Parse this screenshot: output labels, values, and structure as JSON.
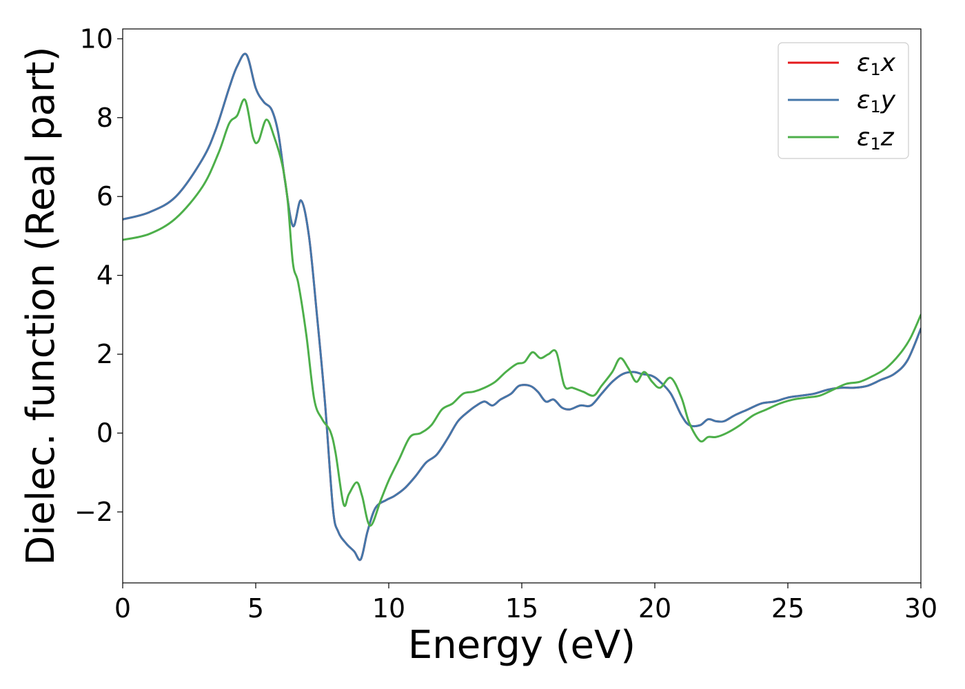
{
  "chart_data": {
    "type": "line",
    "title": "",
    "xlabel": "Energy (eV)",
    "ylabel": "Dielec. function (Real part)",
    "xlim": [
      0,
      30
    ],
    "ylim": [
      -3.8,
      10.25
    ],
    "xticks": [
      0,
      5,
      10,
      15,
      20,
      25,
      30
    ],
    "xtick_labels": [
      "0",
      "5",
      "10",
      "15",
      "20",
      "25",
      "30"
    ],
    "yticks": [
      -2,
      0,
      2,
      4,
      6,
      8,
      10
    ],
    "ytick_labels": [
      "−2",
      "0",
      "2",
      "4",
      "6",
      "8",
      "10"
    ],
    "grid": false,
    "legend_position": "top-right",
    "series": [
      {
        "name": "ε1x",
        "symbol": "ε",
        "subscript": "1",
        "component": "x",
        "color": "#e41a1c",
        "x": [
          0,
          1,
          2,
          3,
          3.5,
          4,
          4.3,
          4.65,
          5,
          5.3,
          5.6,
          5.85,
          6.1,
          6.4,
          6.7,
          7,
          7.3,
          7.6,
          7.9,
          8.1,
          8.4,
          8.7,
          8.95,
          9.2,
          9.5,
          9.9,
          10.2,
          10.6,
          11,
          11.4,
          11.8,
          12.2,
          12.6,
          13,
          13.3,
          13.6,
          13.9,
          14.2,
          14.6,
          14.9,
          15.3,
          15.6,
          15.9,
          16.2,
          16.5,
          16.8,
          17.2,
          17.6,
          18,
          18.4,
          18.8,
          19.2,
          19.5,
          19.9,
          20.2,
          20.6,
          21,
          21.3,
          21.7,
          22,
          22.3,
          22.6,
          23,
          23.5,
          24,
          24.5,
          25,
          25.5,
          26,
          26.5,
          27,
          27.5,
          28,
          28.5,
          29,
          29.5,
          30
        ],
        "y": [
          5.42,
          5.6,
          6.0,
          6.95,
          7.7,
          8.75,
          9.3,
          9.6,
          8.75,
          8.4,
          8.2,
          7.6,
          6.4,
          5.25,
          5.9,
          5.0,
          3.0,
          0.8,
          -1.9,
          -2.5,
          -2.8,
          -3.0,
          -3.2,
          -2.5,
          -1.9,
          -1.7,
          -1.6,
          -1.4,
          -1.1,
          -0.75,
          -0.55,
          -0.15,
          0.3,
          0.55,
          0.7,
          0.8,
          0.7,
          0.85,
          1.0,
          1.2,
          1.2,
          1.05,
          0.8,
          0.85,
          0.65,
          0.6,
          0.7,
          0.7,
          1.0,
          1.3,
          1.5,
          1.55,
          1.5,
          1.45,
          1.3,
          1.0,
          0.45,
          0.2,
          0.2,
          0.35,
          0.3,
          0.3,
          0.45,
          0.6,
          0.75,
          0.8,
          0.9,
          0.95,
          1.0,
          1.1,
          1.15,
          1.15,
          1.2,
          1.35,
          1.5,
          1.85,
          2.65
        ]
      },
      {
        "name": "ε1y",
        "symbol": "ε",
        "subscript": "1",
        "component": "y",
        "color": "#4477aa",
        "x": [
          0,
          1,
          2,
          3,
          3.5,
          4,
          4.3,
          4.65,
          5,
          5.3,
          5.6,
          5.85,
          6.1,
          6.4,
          6.7,
          7,
          7.3,
          7.6,
          7.9,
          8.1,
          8.4,
          8.7,
          8.95,
          9.2,
          9.5,
          9.9,
          10.2,
          10.6,
          11,
          11.4,
          11.8,
          12.2,
          12.6,
          13,
          13.3,
          13.6,
          13.9,
          14.2,
          14.6,
          14.9,
          15.3,
          15.6,
          15.9,
          16.2,
          16.5,
          16.8,
          17.2,
          17.6,
          18,
          18.4,
          18.8,
          19.2,
          19.5,
          19.9,
          20.2,
          20.6,
          21,
          21.3,
          21.7,
          22,
          22.3,
          22.6,
          23,
          23.5,
          24,
          24.5,
          25,
          25.5,
          26,
          26.5,
          27,
          27.5,
          28,
          28.5,
          29,
          29.5,
          30
        ],
        "y": [
          5.42,
          5.6,
          6.0,
          6.95,
          7.7,
          8.75,
          9.3,
          9.6,
          8.75,
          8.4,
          8.2,
          7.6,
          6.4,
          5.25,
          5.9,
          5.0,
          3.0,
          0.8,
          -1.9,
          -2.5,
          -2.8,
          -3.0,
          -3.2,
          -2.5,
          -1.9,
          -1.7,
          -1.6,
          -1.4,
          -1.1,
          -0.75,
          -0.55,
          -0.15,
          0.3,
          0.55,
          0.7,
          0.8,
          0.7,
          0.85,
          1.0,
          1.2,
          1.2,
          1.05,
          0.8,
          0.85,
          0.65,
          0.6,
          0.7,
          0.7,
          1.0,
          1.3,
          1.5,
          1.55,
          1.5,
          1.45,
          1.3,
          1.0,
          0.45,
          0.2,
          0.2,
          0.35,
          0.3,
          0.3,
          0.45,
          0.6,
          0.75,
          0.8,
          0.9,
          0.95,
          1.0,
          1.1,
          1.15,
          1.15,
          1.2,
          1.35,
          1.5,
          1.85,
          2.65
        ]
      },
      {
        "name": "ε1z",
        "symbol": "ε",
        "subscript": "1",
        "component": "z",
        "color": "#4daf4a",
        "x": [
          0,
          1,
          2,
          3,
          3.6,
          4,
          4.3,
          4.6,
          4.9,
          5.1,
          5.4,
          5.7,
          6,
          6.2,
          6.4,
          6.6,
          6.9,
          7.2,
          7.5,
          7.8,
          8.0,
          8.3,
          8.5,
          8.8,
          9.0,
          9.3,
          9.7,
          10.0,
          10.4,
          10.8,
          11.2,
          11.6,
          12,
          12.4,
          12.8,
          13.2,
          13.6,
          14,
          14.4,
          14.8,
          15.1,
          15.4,
          15.7,
          16,
          16.3,
          16.6,
          16.9,
          17.3,
          17.7,
          18,
          18.4,
          18.7,
          19,
          19.3,
          19.6,
          19.9,
          20.2,
          20.6,
          21,
          21.3,
          21.7,
          22,
          22.3,
          22.7,
          23.2,
          23.7,
          24.2,
          24.7,
          25.2,
          25.7,
          26.2,
          26.7,
          27.2,
          27.7,
          28.2,
          28.7,
          29.2,
          29.6,
          30
        ],
        "y": [
          4.9,
          5.05,
          5.45,
          6.25,
          7.1,
          7.85,
          8.05,
          8.45,
          7.5,
          7.4,
          7.95,
          7.5,
          6.8,
          5.9,
          4.3,
          3.8,
          2.5,
          0.85,
          0.35,
          0.05,
          -0.5,
          -1.8,
          -1.55,
          -1.25,
          -1.6,
          -2.35,
          -1.7,
          -1.2,
          -0.65,
          -0.1,
          0.0,
          0.2,
          0.6,
          0.75,
          1.0,
          1.05,
          1.15,
          1.3,
          1.55,
          1.75,
          1.8,
          2.05,
          1.9,
          2.0,
          2.05,
          1.2,
          1.15,
          1.05,
          0.95,
          1.2,
          1.55,
          1.9,
          1.65,
          1.3,
          1.55,
          1.3,
          1.15,
          1.4,
          0.9,
          0.25,
          -0.2,
          -0.1,
          -0.1,
          0.0,
          0.2,
          0.45,
          0.6,
          0.75,
          0.85,
          0.9,
          0.95,
          1.1,
          1.25,
          1.3,
          1.45,
          1.65,
          2.0,
          2.4,
          3.0
        ]
      }
    ]
  }
}
